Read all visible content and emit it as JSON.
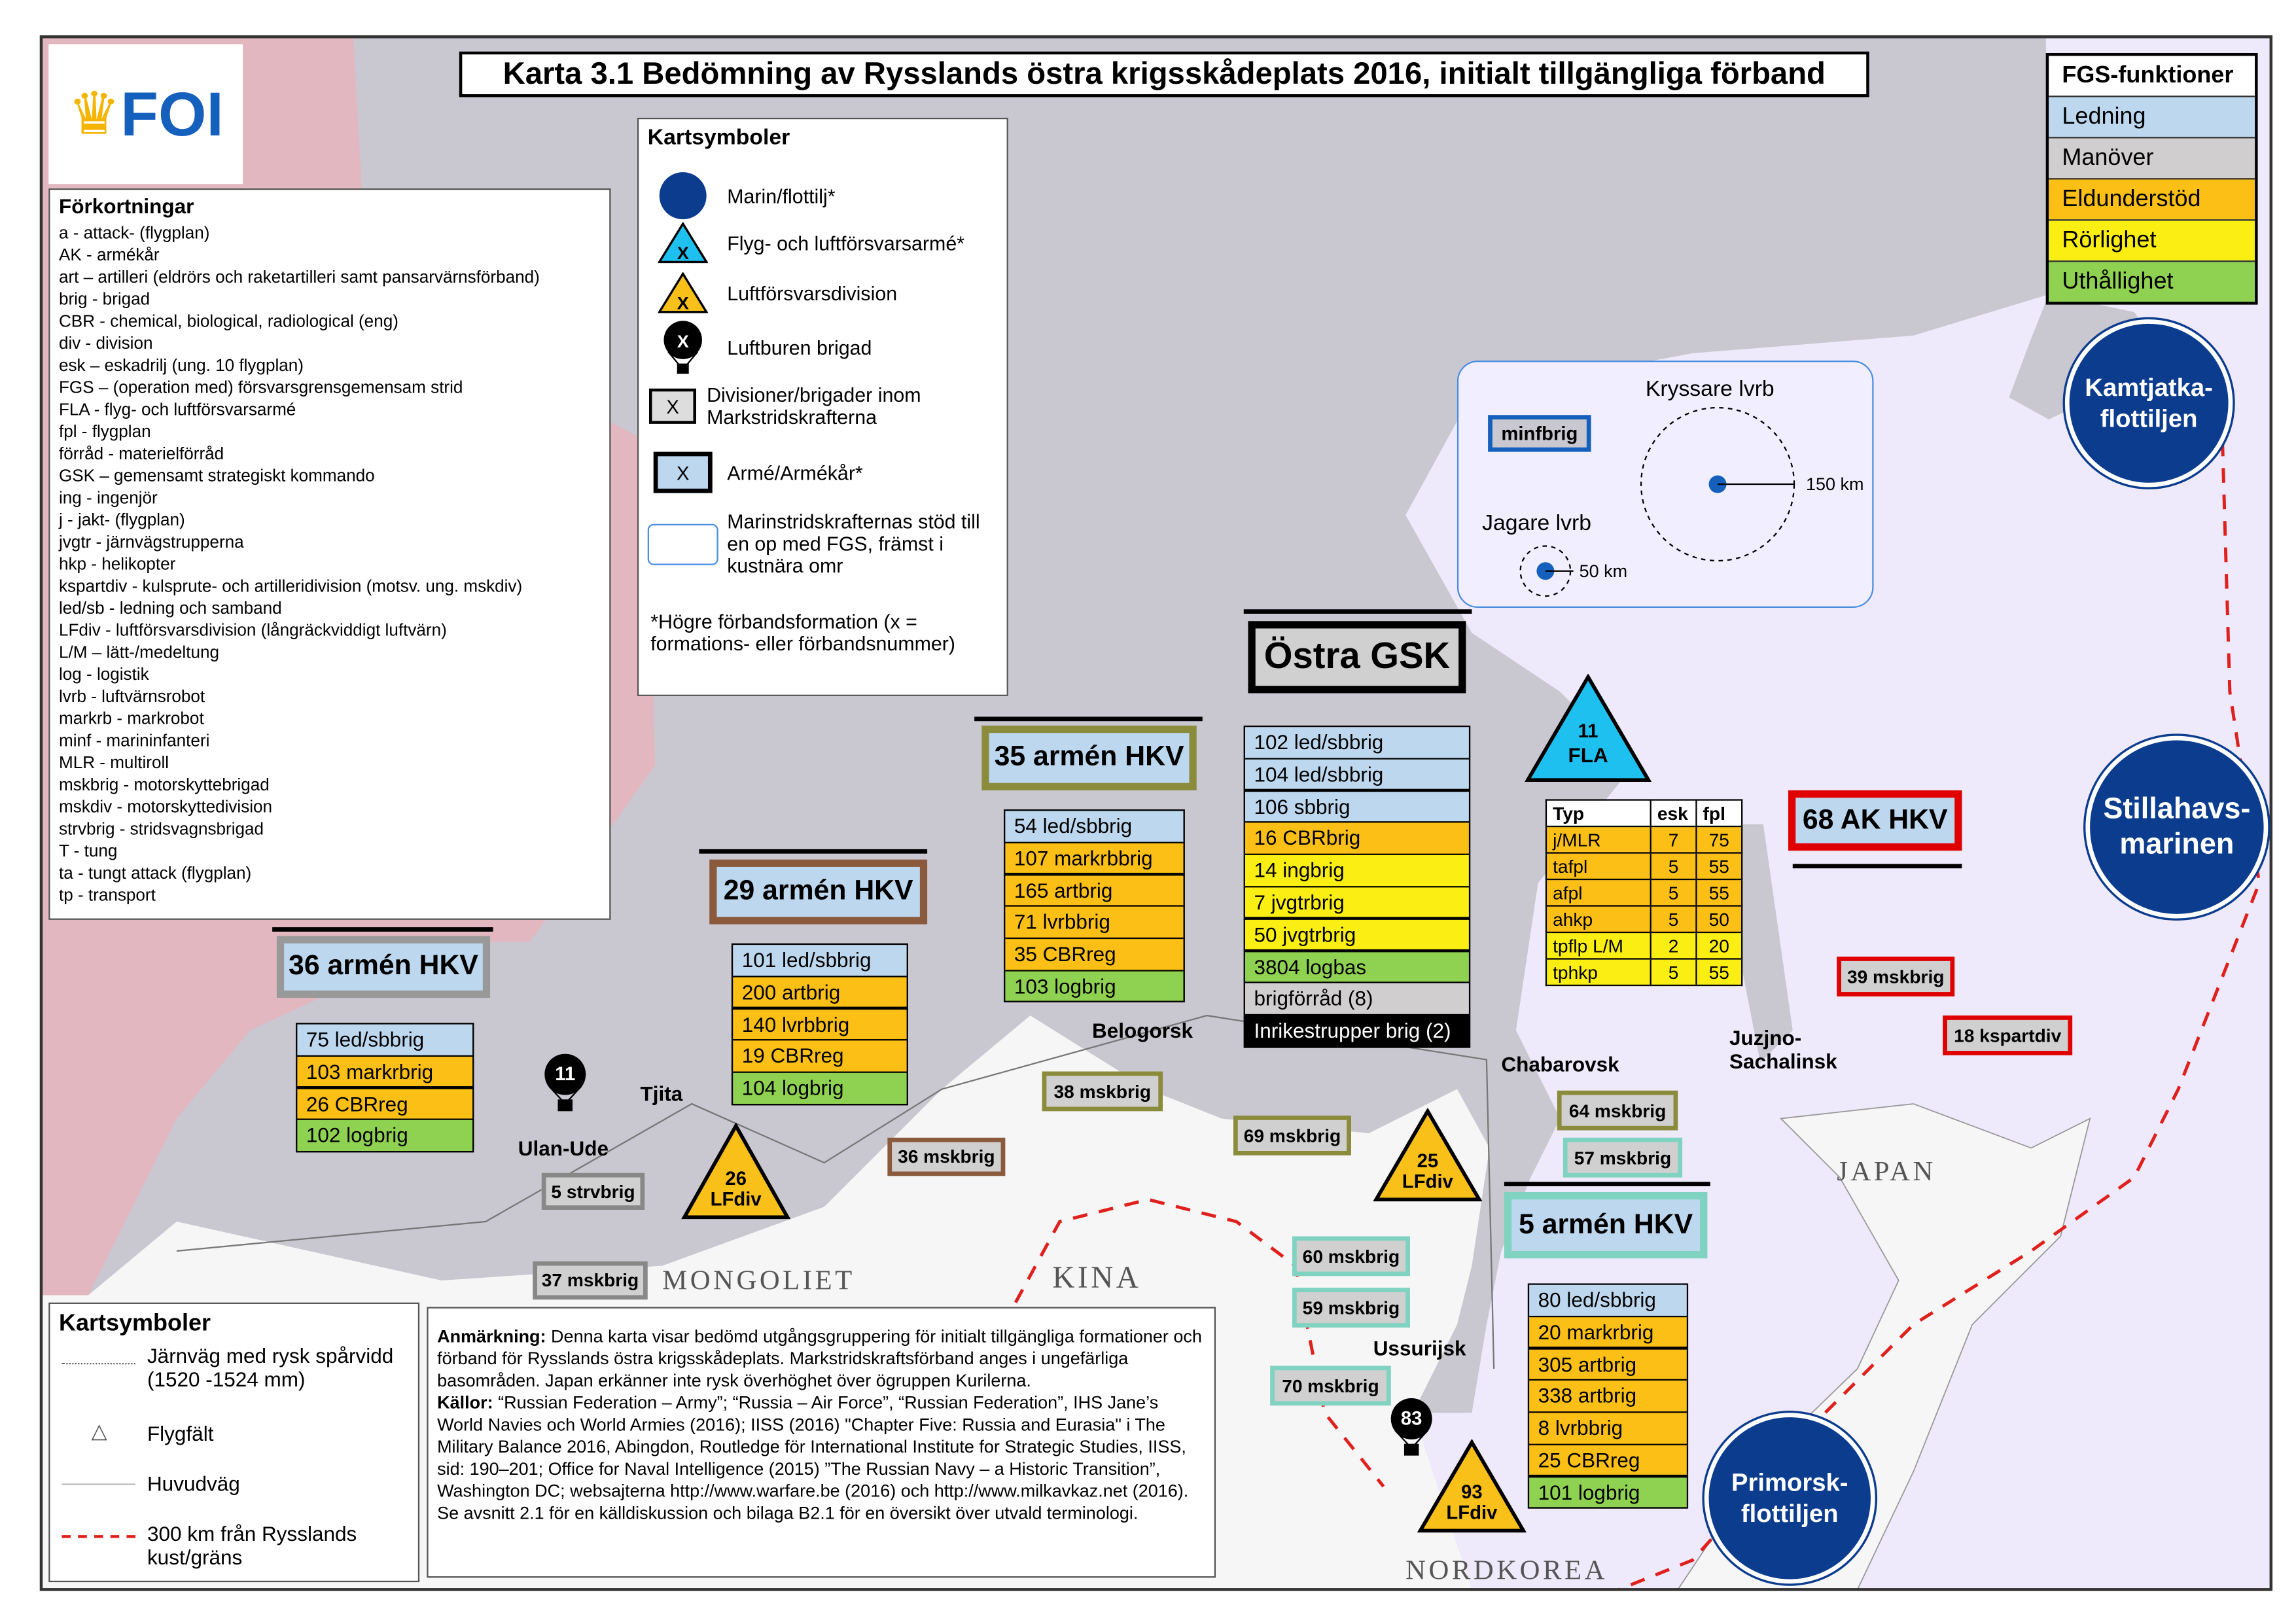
{
  "title": "Karta 3.1 Bedömning av Rysslands östra krigsskådeplats 2016, initialt tillgängliga förband",
  "logo": "FOI",
  "colors": {
    "ledning": "#bdd7ee",
    "manover": "#d0cece",
    "eld": "#fbbf16",
    "rorlighet": "#fbee13",
    "uthallighet": "#8fd150",
    "inrikes": "#000000",
    "sea": "#eeeafb",
    "russia": "#c9c7d0",
    "other_country": "#f6f6f6",
    "neighbour": "#e3b7c0",
    "navy": "#0c3c8e",
    "fla": "#1ec0f0",
    "lfdiv": "#f9c01a",
    "red_line": "#e0201c"
  },
  "fgs": {
    "header": "FGS-funktioner",
    "items": [
      {
        "label": "Ledning",
        "fn": "ledning"
      },
      {
        "label": "Manöver",
        "fn": "manover"
      },
      {
        "label": "Eldunderstöd",
        "fn": "eld"
      },
      {
        "label": "Rörlighet",
        "fn": "rorlighet"
      },
      {
        "label": "Uthållighet",
        "fn": "uthallighet"
      }
    ]
  },
  "abbreviations": {
    "header": "Förkortningar",
    "items": [
      "a - attack- (flygplan)",
      "AK - armékår",
      "art – artilleri (eldrörs och raketartilleri samt pansarvärnsförband)",
      "brig - brigad",
      "CBR - chemical, biological, radiological (eng)",
      "div - division",
      "esk – eskadrilj (ung. 10 flygplan)",
      "FGS – (operation med) försvarsgrensgemensam strid",
      "FLA - flyg- och luftförsvarsarmé",
      "fpl - flygplan",
      "förråd - materielförråd",
      "GSK – gemensamt strategiskt kommando",
      "ing - ingenjör",
      "j - jakt- (flygplan)",
      "jvgtr - järnvägstrupperna",
      "hkp - helikopter",
      "kspartdiv - kulsprute- och artilleridivision (motsv. ung. mskdiv)",
      "led/sb - ledning och samband",
      "LFdiv - luftförsvarsdivision (långräckviddigt luftvärn)",
      "L/M – lätt-/medeltung",
      "log - logistik",
      "lvrb - luftvärnsrobot",
      "markrb - markrobot",
      "minf - marininfanteri",
      "MLR - multiroll",
      "mskbrig - motorskyttebrigad",
      "mskdiv - motorskyttedivision",
      "strvbrig - stridsvagnsbrigad",
      "T - tung",
      "ta - tungt attack (flygplan)",
      "tp - transport"
    ]
  },
  "map_symbols": {
    "header": "Kartsymboler",
    "items": [
      {
        "label": "Marin/flottilj*",
        "icon": "navy-circle-icon"
      },
      {
        "label": "Flyg- och luftförsvarsarmé*",
        "icon": "fla-triangle-icon",
        "glyph": "X"
      },
      {
        "label": "Luftförsvarsdivision",
        "icon": "lfdiv-triangle-icon",
        "glyph": "X"
      },
      {
        "label": "Luftburen brigad",
        "icon": "parachute-icon",
        "glyph": "X"
      },
      {
        "label": "Divisioner/brigader inom Markstridskrafterna",
        "icon": "ground-unit-icon",
        "glyph": "X"
      },
      {
        "label": "Armé/Armékår*",
        "icon": "army-corps-icon",
        "glyph": "X"
      },
      {
        "label": "Marinstridskrafternas stöd till en op med FGS, främst i kustnära omr",
        "icon": "naval-support-area-icon"
      }
    ],
    "footnote": "*Högre förbandsformation (x = formations- eller förbandsnummer)"
  },
  "range": {
    "cruiser": "Kryssare lvrb",
    "cruiser_range": "150 km",
    "destroyer": "Jagare lvrb",
    "destroyer_range": "50 km",
    "minfbrig": "minfbrig"
  },
  "fleets": [
    {
      "label": "Kamtjatka-flottiljen"
    },
    {
      "label": "Stillahavs-marinen"
    },
    {
      "label": "Primorsk-flottiljen"
    }
  ],
  "hq": {
    "a36": {
      "label": "36 armén HKV",
      "units": [
        {
          "t": "75 led/sbbrig",
          "fn": "ledning"
        },
        {
          "t": "103 markrbrig",
          "fn": "eld"
        },
        {
          "t": "26 CBRreg",
          "fn": "eld"
        },
        {
          "t": "102 logbrig",
          "fn": "uthallighet"
        }
      ]
    },
    "a29": {
      "label": "29 armén HKV",
      "units": [
        {
          "t": "101 led/sbbrig",
          "fn": "ledning"
        },
        {
          "t": "200 artbrig",
          "fn": "eld"
        },
        {
          "t": "140 lvrbbrig",
          "fn": "eld"
        },
        {
          "t": "19 CBRreg",
          "fn": "eld"
        },
        {
          "t": "104 logbrig",
          "fn": "uthallighet"
        }
      ]
    },
    "a35": {
      "label": "35 armén HKV",
      "units": [
        {
          "t": "54 led/sbbrig",
          "fn": "ledning"
        },
        {
          "t": "107 markrbbrig",
          "fn": "eld"
        },
        {
          "t": "165 artbrig",
          "fn": "eld"
        },
        {
          "t": "71 lvrbbrig",
          "fn": "eld"
        },
        {
          "t": "35 CBRreg",
          "fn": "eld"
        },
        {
          "t": "103 logbrig",
          "fn": "uthallighet"
        }
      ]
    },
    "gsk": {
      "label": "Östra GSK",
      "units": [
        {
          "t": "102 led/sbbrig",
          "fn": "ledning"
        },
        {
          "t": "104 led/sbbrig",
          "fn": "ledning"
        },
        {
          "t": "106 sbbrig",
          "fn": "ledning"
        },
        {
          "t": "16 CBRbrig",
          "fn": "eld"
        },
        {
          "t": "14 ingbrig",
          "fn": "rorlighet"
        },
        {
          "t": "7 jvgtrbrig",
          "fn": "rorlighet"
        },
        {
          "t": "50 jvgtrbrig",
          "fn": "rorlighet"
        },
        {
          "t": "3804 logbas",
          "fn": "uthallighet"
        },
        {
          "t": "brigförråd (8)",
          "fn": "manover"
        },
        {
          "t": "Inrikestrupper brig (2)",
          "fn": "inrikes"
        }
      ]
    },
    "a5": {
      "label": "5 armén HKV",
      "units": [
        {
          "t": "80 led/sbbrig",
          "fn": "ledning"
        },
        {
          "t": "20 markrbrig",
          "fn": "eld"
        },
        {
          "t": "305 artbrig",
          "fn": "eld"
        },
        {
          "t": "338 artbrig",
          "fn": "eld"
        },
        {
          "t": "8 lvrbbrig",
          "fn": "eld"
        },
        {
          "t": "25 CBRreg",
          "fn": "eld"
        },
        {
          "t": "101 logbrig",
          "fn": "uthallighet"
        }
      ]
    },
    "ak68": {
      "label": "68 AK HKV"
    }
  },
  "tags": [
    "5 strvbrig",
    "37 mskbrig",
    "36 mskbrig",
    "38 mskbrig",
    "69 mskbrig",
    "64 mskbrig",
    "57 mskbrig",
    "60 mskbrig",
    "59 mskbrig",
    "70 mskbrig",
    "39 mskbrig",
    "18 kspartdiv"
  ],
  "air": {
    "fla": {
      "num": "11",
      "label": "FLA"
    },
    "lf26": {
      "num": "26",
      "label": "LFdiv"
    },
    "lf25": {
      "num": "25",
      "label": "LFdiv"
    },
    "lf93": {
      "num": "93",
      "label": "LFdiv"
    },
    "para11": "11",
    "para83": "83"
  },
  "air_table": {
    "headers": [
      "Typ",
      "esk",
      "fpl"
    ],
    "rows": [
      [
        "j/MLR",
        "7",
        "75",
        "eld"
      ],
      [
        "tafpl",
        "5",
        "55",
        "eld"
      ],
      [
        "afpl",
        "5",
        "55",
        "eld"
      ],
      [
        "ahkp",
        "5",
        "50",
        "eld"
      ],
      [
        "tpflp L/M",
        "2",
        "20",
        "rorlighet"
      ],
      [
        "tphkp",
        "5",
        "55",
        "rorlighet"
      ]
    ]
  },
  "cities": [
    "Belogorsk",
    "Chabarovsk",
    "Ulan-Ude",
    "Tjita",
    "Ussurijsk",
    "Juzjno-Sachalinsk"
  ],
  "countries": [
    "MONGOLIET",
    "KINA",
    "JAPAN",
    "NORDKOREA"
  ],
  "legend2": {
    "header": "Kartsymboler",
    "items": [
      "Järnväg med rysk spårvidd (1520 -1524 mm)",
      "Flygfält",
      "Huvudväg",
      "300 km från Rysslands kust/gräns"
    ]
  },
  "note": {
    "remark_label": "Anmärkning:",
    "remark": " Denna karta visar bedömd utgångsgruppering för initialt tillgängliga formationer och förband för Rysslands östra krigsskådeplats. Markstridskraftsförband anges i ungefärliga basområden. Japan erkänner inte rysk överhöghet över ögruppen Kurilerna.",
    "sources_label": "Källor:",
    "sources": " “Russian Federation – Army”; “Russia – Air Force”, “Russian Federation”, IHS Jane’s World Navies och World Armies (2016); IISS (2016) \"Chapter Five: Russia and Eurasia\" i The Military Balance 2016, Abingdon, Routledge för International Institute for Strategic Studies, IISS, sid: 190–201; Office for Naval Intelligence (2015) ”The Russian Navy – a Historic Transition”, Washington DC; websajterna http://www.warfare.be (2016) och http://www.milkavkaz.net (2016).",
    "see_also": "Se avsnitt 2.1 för en källdiskussion och bilaga B2.1 för en översikt över utvald terminologi."
  }
}
